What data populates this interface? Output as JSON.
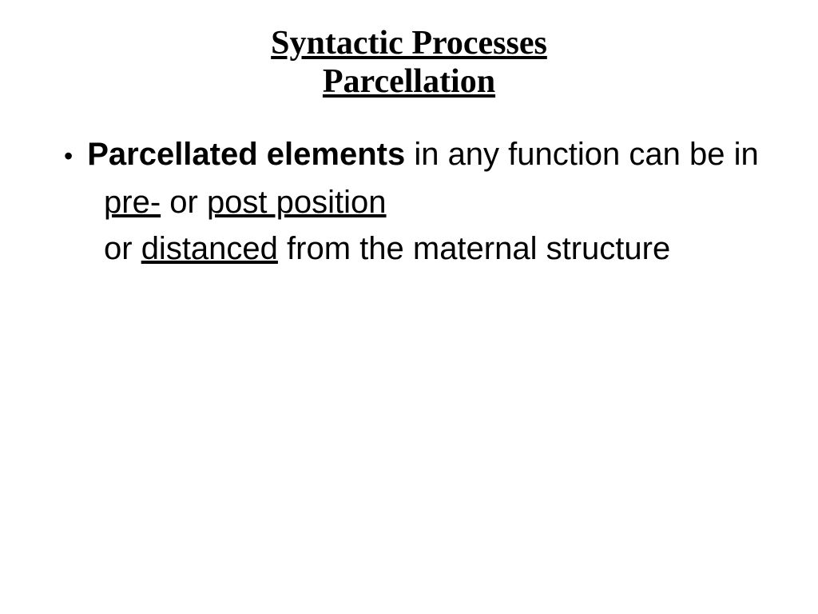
{
  "slide": {
    "background_color": "#ffffff",
    "text_color": "#000000",
    "title": {
      "line1": "Syntactic Processes",
      "line2": " Parcellation",
      "font_family_serif": "Times New Roman",
      "font_size": 42,
      "font_weight": "bold",
      "underline": true
    },
    "body": {
      "font_family_sans": "Arial",
      "font_size": 40,
      "bullet": {
        "marker": "•",
        "segments": {
          "bold_lead": "Parcellated elements",
          "rest": " in any function can be in"
        }
      },
      "line2": {
        "pre": "pre-",
        "mid": " or ",
        "post": "post position"
      },
      "line3": {
        "a": "or ",
        "dist": "distanced",
        "b": " from the maternal structure"
      }
    }
  }
}
